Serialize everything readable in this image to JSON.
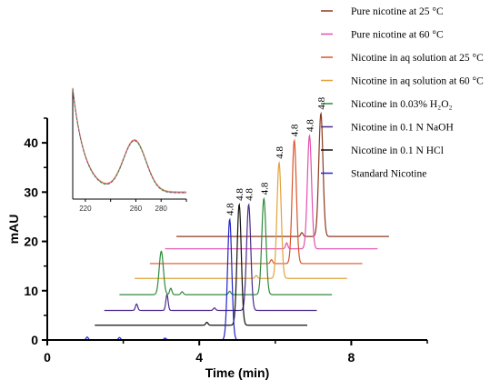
{
  "chart_data": {
    "type": "line",
    "title": "",
    "xlabel": "Time (min)",
    "ylabel": "mAU",
    "xlim": [
      0,
      10
    ],
    "ylim": [
      0,
      45
    ],
    "x_ticks": [
      "0",
      "4",
      "8"
    ],
    "y_ticks": [
      "0",
      "10",
      "20",
      "30",
      "40"
    ],
    "peak_label": "4.8",
    "series": [
      {
        "name": "Pure nicotine at 25 °C",
        "color": "#8b3a1e",
        "offset_y": 21,
        "offset_x": 2.4,
        "peaks": [
          {
            "x": 4.8,
            "h": 25
          },
          {
            "x": 4.3,
            "h": 0.8
          }
        ]
      },
      {
        "name": "Pure nicotine at 60 °C",
        "color": "#e34fb0",
        "offset_y": 18.5,
        "offset_x": 2.1,
        "peaks": [
          {
            "x": 4.8,
            "h": 23
          },
          {
            "x": 4.2,
            "h": 1.2
          }
        ]
      },
      {
        "name": "Nicotine in aq solution at 25 °C",
        "color": "#d9542a",
        "offset_y": 15.5,
        "offset_x": 1.7,
        "peaks": [
          {
            "x": 4.8,
            "h": 25
          },
          {
            "x": 4.2,
            "h": 0.8
          }
        ]
      },
      {
        "name": "Nicotine in aq solution at 60 °C",
        "color": "#e3a23b",
        "offset_y": 12.5,
        "offset_x": 1.3,
        "peaks": [
          {
            "x": 4.8,
            "h": 23.5
          },
          {
            "x": 4.2,
            "h": 0.6
          }
        ]
      },
      {
        "name": "Nicotine in 0.03% H₂O₂",
        "color": "#2e8b3a",
        "offset_y": 9.2,
        "offset_x": 0.9,
        "peaks": [
          {
            "x": 4.8,
            "h": 19.5
          },
          {
            "x": 2.1,
            "h": 8.8
          },
          {
            "x": 2.35,
            "h": 1.3
          },
          {
            "x": 2.65,
            "h": 0.6
          },
          {
            "x": 3.9,
            "h": 0.7
          }
        ]
      },
      {
        "name": "Nicotine in 0.1 N NaOH",
        "color": "#4b2a8a",
        "offset_y": 6,
        "offset_x": 0.5,
        "peaks": [
          {
            "x": 4.8,
            "h": 21.5
          },
          {
            "x": 2.65,
            "h": 3.2
          },
          {
            "x": 1.85,
            "h": 1.3
          },
          {
            "x": 3.9,
            "h": 0.5
          }
        ]
      },
      {
        "name": "Nicotine in 0.1 N HCl",
        "color": "#111111",
        "offset_y": 3,
        "offset_x": 0.25,
        "peaks": [
          {
            "x": 4.8,
            "h": 24.5
          },
          {
            "x": 3.95,
            "h": 0.6
          }
        ]
      },
      {
        "name": "Standard Nicotine",
        "color": "#2323c8",
        "offset_y": 0,
        "offset_x": 0,
        "peaks": [
          {
            "x": 4.8,
            "h": 24.5
          },
          {
            "x": 1.05,
            "h": 0.6
          },
          {
            "x": 1.9,
            "h": 0.5
          },
          {
            "x": 3.1,
            "h": 0.4
          }
        ]
      }
    ],
    "trace_end": 6.6,
    "inset": {
      "x_ticks": [
        "220",
        "260",
        "280"
      ],
      "line_colors": [
        "#e3a23b",
        "#d9542a",
        "#e34fb0",
        "#2e8b3a"
      ]
    }
  }
}
